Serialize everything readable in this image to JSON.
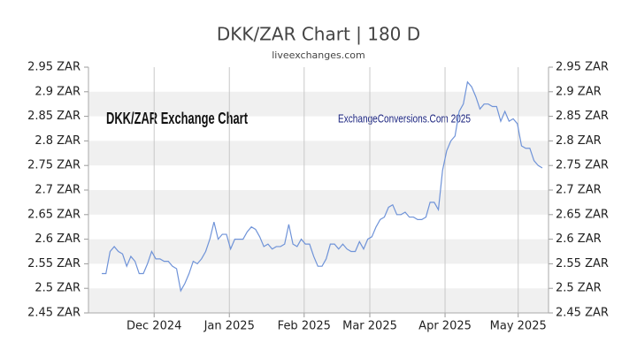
{
  "chart_data": {
    "type": "line",
    "title": "DKK/ZAR Chart | 180 D",
    "subtitle": "liveexchanges.com",
    "annotations": [
      "DKK/ZAR Exchange Chart",
      "ExchangeConversions.Com 2025"
    ],
    "series": [
      {
        "name": "DKK/ZAR",
        "color": "#6f93d8",
        "values": [
          2.53,
          2.53,
          2.575,
          2.585,
          2.575,
          2.57,
          2.545,
          2.565,
          2.555,
          2.53,
          2.53,
          2.55,
          2.575,
          2.56,
          2.56,
          2.555,
          2.555,
          2.545,
          2.54,
          2.495,
          2.51,
          2.53,
          2.555,
          2.55,
          2.56,
          2.575,
          2.6,
          2.635,
          2.6,
          2.61,
          2.61,
          2.58,
          2.6,
          2.6,
          2.6,
          2.615,
          2.625,
          2.62,
          2.605,
          2.585,
          2.59,
          2.58,
          2.585,
          2.585,
          2.59,
          2.63,
          2.59,
          2.585,
          2.6,
          2.59,
          2.59,
          2.565,
          2.545,
          2.545,
          2.56,
          2.59,
          2.59,
          2.58,
          2.59,
          2.58,
          2.575,
          2.575,
          2.595,
          2.58,
          2.6,
          2.605,
          2.625,
          2.64,
          2.645,
          2.665,
          2.67,
          2.65,
          2.65,
          2.655,
          2.645,
          2.645,
          2.64,
          2.64,
          2.645,
          2.675,
          2.675,
          2.66,
          2.74,
          2.78,
          2.8,
          2.81,
          2.86,
          2.875,
          2.92,
          2.91,
          2.89,
          2.865,
          2.875,
          2.875,
          2.87,
          2.87,
          2.84,
          2.86,
          2.84,
          2.845,
          2.835,
          2.79,
          2.785,
          2.785,
          2.76,
          2.75,
          2.745
        ]
      }
    ],
    "xlim": [
      -3.2,
      107.5
    ],
    "xticks": [
      {
        "value": 12.6,
        "label": "Dec 2024"
      },
      {
        "value": 30.7,
        "label": "Jan 2025"
      },
      {
        "value": 48.7,
        "label": "Feb 2025"
      },
      {
        "value": 64.5,
        "label": "Mar 2025"
      },
      {
        "value": 82.6,
        "label": "Apr 2025"
      },
      {
        "value": 100.2,
        "label": "May 2025"
      }
    ],
    "ylim": [
      2.45,
      2.95
    ],
    "yticks": [
      {
        "value": 2.95,
        "label": "2.95 ZAR"
      },
      {
        "value": 2.9,
        "label": "2.9 ZAR"
      },
      {
        "value": 2.85,
        "label": "2.85 ZAR"
      },
      {
        "value": 2.8,
        "label": "2.8 ZAR"
      },
      {
        "value": 2.75,
        "label": "2.75 ZAR"
      },
      {
        "value": 2.7,
        "label": "2.7 ZAR"
      },
      {
        "value": 2.65,
        "label": "2.65 ZAR"
      },
      {
        "value": 2.6,
        "label": "2.6 ZAR"
      },
      {
        "value": 2.55,
        "label": "2.55 ZAR"
      },
      {
        "value": 2.5,
        "label": "2.5 ZAR"
      },
      {
        "value": 2.45,
        "label": "2.45 ZAR"
      }
    ],
    "grid": true
  }
}
